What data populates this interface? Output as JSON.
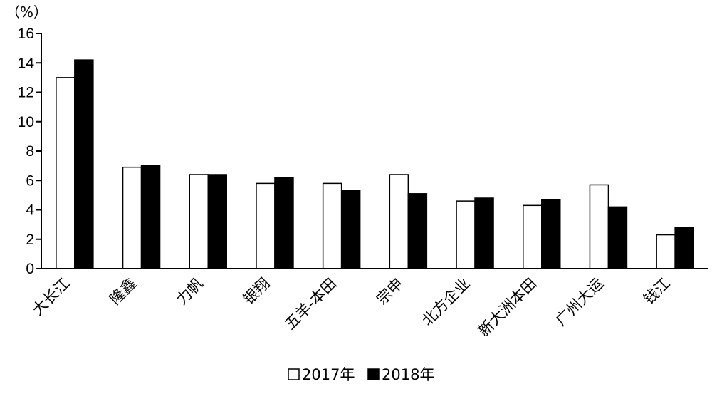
{
  "chart_data": {
    "type": "bar",
    "title": "",
    "unit_label": "（%）",
    "categories": [
      "大长江",
      "隆鑫",
      "力帆",
      "银翔",
      "五羊-本田",
      "宗申",
      "北方企业",
      "新大洲本田",
      "广州大运",
      "钱江"
    ],
    "series": [
      {
        "name": "2017年",
        "values": [
          13.0,
          6.9,
          6.4,
          5.8,
          5.8,
          6.4,
          4.6,
          4.3,
          5.7,
          2.3
        ]
      },
      {
        "name": "2018年",
        "values": [
          14.2,
          7.0,
          6.4,
          6.2,
          5.3,
          5.1,
          4.8,
          4.7,
          4.2,
          2.8
        ]
      }
    ],
    "ylim": [
      0,
      16
    ],
    "yticks": [
      0,
      2,
      4,
      6,
      8,
      10,
      12,
      14,
      16
    ],
    "grid": false,
    "legend_position": "bottom-center",
    "colors": {
      "2017年": "#ffffff",
      "2018年": "#000000",
      "axis": "#000000"
    }
  }
}
